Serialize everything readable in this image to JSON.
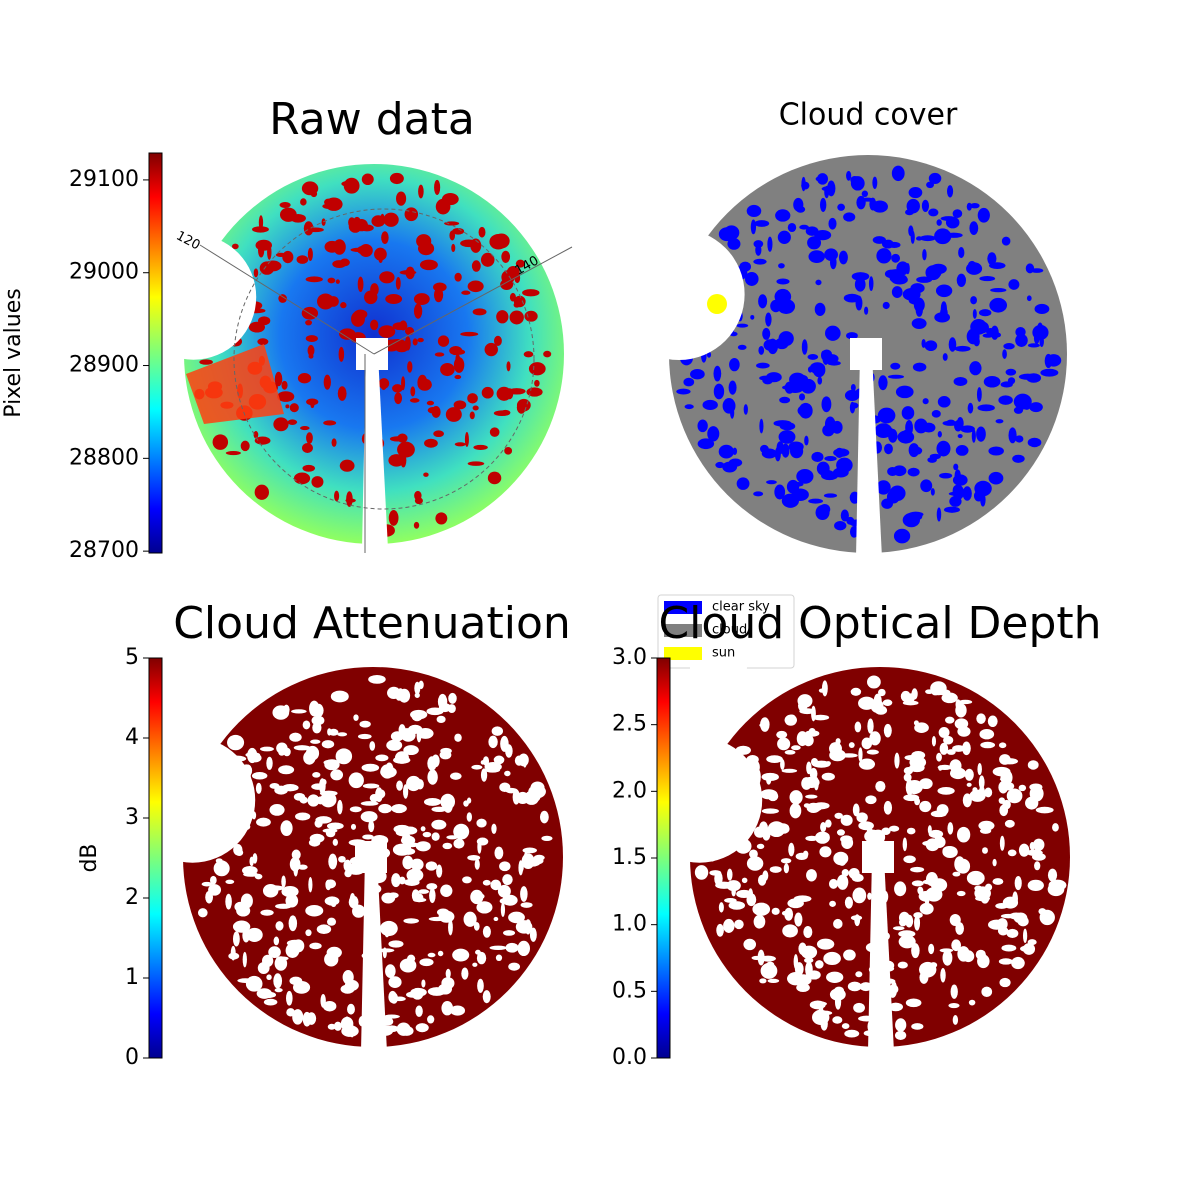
{
  "chart_data": [
    {
      "type": "image",
      "title": "Raw data",
      "colormap": "jet",
      "colorbar": {
        "label": "Pixel values",
        "lim": [
          28698,
          29129
        ],
        "ticks": [
          28700,
          28800,
          28900,
          29000,
          29100
        ]
      },
      "annotations": [
        "120",
        "140"
      ]
    },
    {
      "type": "classification",
      "title": "Cloud cover",
      "legend": [
        {
          "name": "clear sky",
          "color": "#0000ff"
        },
        {
          "name": "cloud",
          "color": "#808080"
        },
        {
          "name": "sun",
          "color": "#ffff00"
        }
      ]
    },
    {
      "type": "image",
      "title": "Cloud Attenuation",
      "colormap": "jet",
      "colorbar": {
        "label": "dB",
        "lim": [
          0,
          5
        ],
        "ticks": [
          0,
          1,
          2,
          3,
          4,
          5
        ]
      }
    },
    {
      "type": "image",
      "title": "Cloud Optical Depth",
      "colormap": "jet",
      "colorbar": {
        "lim": [
          0,
          3
        ],
        "ticks": [
          {
            "value": 0,
            "label": "0.0"
          },
          {
            "value": 0.5,
            "label": "0.5"
          },
          {
            "value": 1,
            "label": "1.0"
          },
          {
            "value": 1.5,
            "label": "1.5"
          },
          {
            "value": 2,
            "label": "2.0"
          },
          {
            "value": 2.5,
            "label": "2.5"
          },
          {
            "value": 3,
            "label": "3.0"
          }
        ]
      }
    }
  ]
}
